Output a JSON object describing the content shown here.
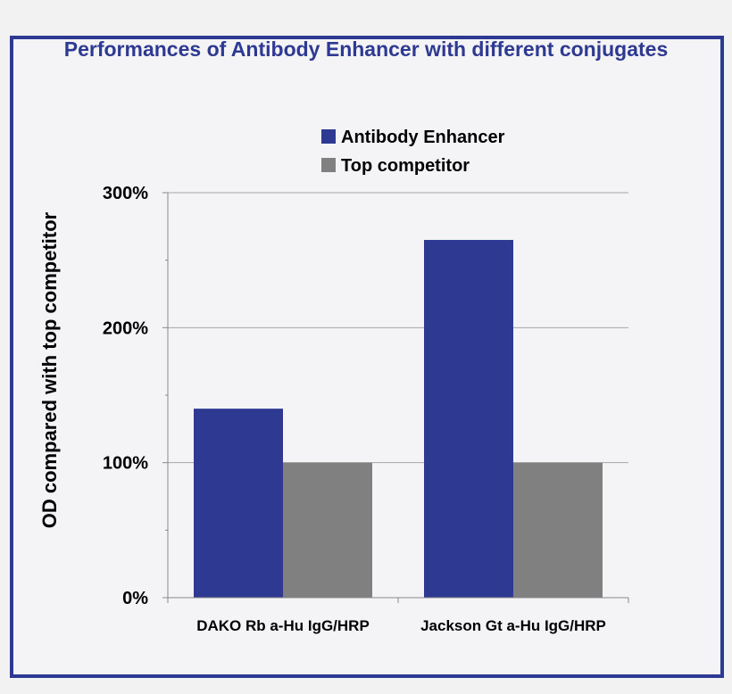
{
  "chart_data": {
    "type": "bar",
    "title": "Performances of Antibody Enhancer with different conjugates",
    "ylabel": "OD compared with top competitor",
    "xlabel": "",
    "categories": [
      "DAKO Rb a-Hu IgG/HRP",
      "Jackson Gt a-Hu IgG/HRP"
    ],
    "series": [
      {
        "name": "Antibody Enhancer",
        "values": [
          1.4,
          2.65
        ],
        "color": "#2e3a92"
      },
      {
        "name": "Top competitor",
        "values": [
          1.0,
          1.0
        ],
        "color": "#808080"
      }
    ],
    "ylim": [
      0,
      3
    ],
    "yticks": [
      {
        "value": 0,
        "label": "0%"
      },
      {
        "value": 1,
        "label": "100%"
      },
      {
        "value": 2,
        "label": "200%"
      },
      {
        "value": 3,
        "label": "300%"
      }
    ],
    "grid": true,
    "legend_position": "top"
  }
}
